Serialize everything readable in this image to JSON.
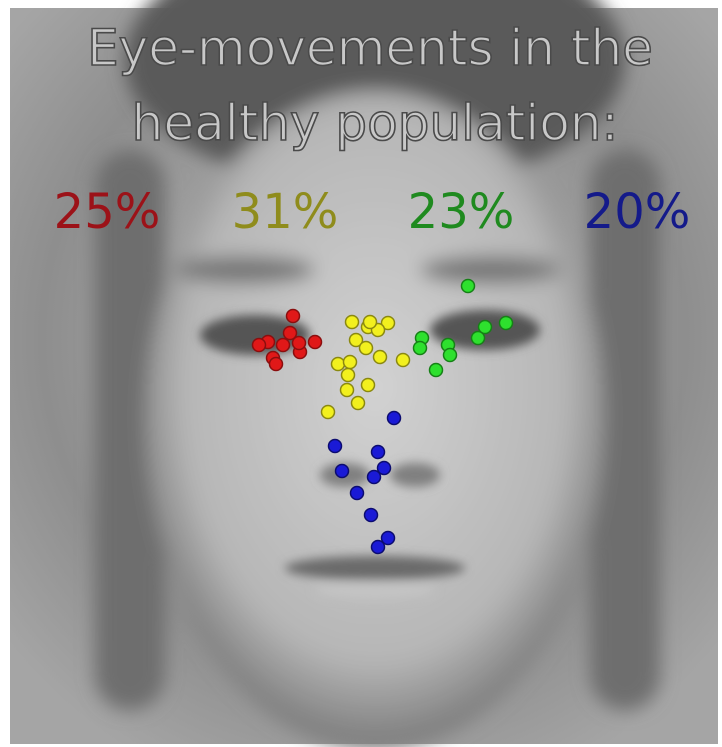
{
  "title": {
    "line1": "Eye-movements in the",
    "line2": "healthy population:"
  },
  "groups": [
    {
      "label": "25%"
    },
    {
      "label": "31%"
    },
    {
      "label": "23%"
    },
    {
      "label": "20%"
    }
  ]
}
